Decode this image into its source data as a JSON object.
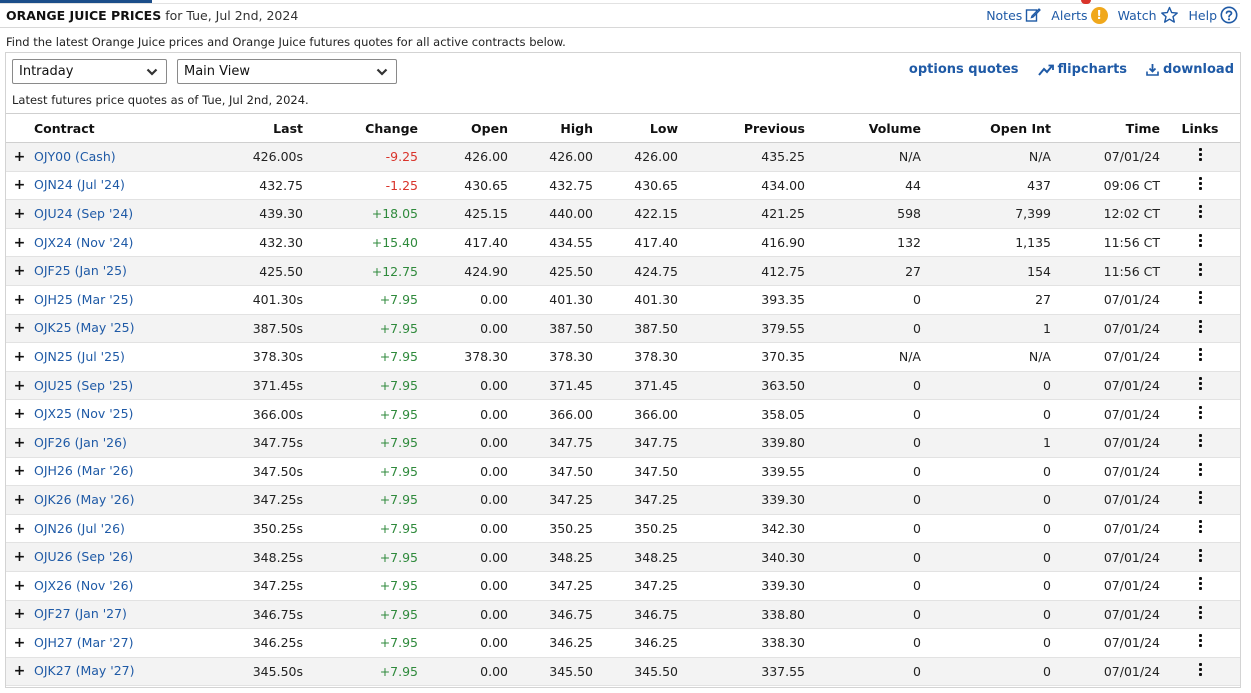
{
  "header": {
    "title": "ORANGE JUICE PRICES",
    "subtitle": "for Tue, Jul 2nd, 2024",
    "tools": {
      "notes": "Notes",
      "alerts": "Alerts",
      "alerts_badge": "!",
      "watch": "Watch",
      "help": "Help"
    }
  },
  "description": "Find the latest Orange Juice prices and Orange Juice futures quotes for all active contracts below.",
  "controls": {
    "period_select": "Intraday",
    "view_select": "Main View"
  },
  "links": {
    "options_quotes": "options quotes",
    "flipcharts": "flipcharts",
    "download": "download"
  },
  "as_of": "Latest futures price quotes as of Tue, Jul 2nd, 2024.",
  "colors": {
    "accent": "#1f5aa6",
    "negative": "#d9342b",
    "positive": "#2f8a3c",
    "alert": "#f0a81c"
  },
  "table": {
    "columns": [
      "Contract",
      "Last",
      "Change",
      "Open",
      "High",
      "Low",
      "Previous",
      "Volume",
      "Open Int",
      "Time",
      "Links"
    ],
    "rows": [
      {
        "contract": "OJY00 (Cash)",
        "last": "426.00s",
        "change": "-9.25",
        "open": "426.00",
        "high": "426.00",
        "low": "426.00",
        "previous": "435.25",
        "volume": "N/A",
        "open_int": "N/A",
        "time": "07/01/24"
      },
      {
        "contract": "OJN24 (Jul '24)",
        "last": "432.75",
        "change": "-1.25",
        "open": "430.65",
        "high": "432.75",
        "low": "430.65",
        "previous": "434.00",
        "volume": "44",
        "open_int": "437",
        "time": "09:06 CT"
      },
      {
        "contract": "OJU24 (Sep '24)",
        "last": "439.30",
        "change": "+18.05",
        "open": "425.15",
        "high": "440.00",
        "low": "422.15",
        "previous": "421.25",
        "volume": "598",
        "open_int": "7,399",
        "time": "12:02 CT"
      },
      {
        "contract": "OJX24 (Nov '24)",
        "last": "432.30",
        "change": "+15.40",
        "open": "417.40",
        "high": "434.55",
        "low": "417.40",
        "previous": "416.90",
        "volume": "132",
        "open_int": "1,135",
        "time": "11:56 CT"
      },
      {
        "contract": "OJF25 (Jan '25)",
        "last": "425.50",
        "change": "+12.75",
        "open": "424.90",
        "high": "425.50",
        "low": "424.75",
        "previous": "412.75",
        "volume": "27",
        "open_int": "154",
        "time": "11:56 CT"
      },
      {
        "contract": "OJH25 (Mar '25)",
        "last": "401.30s",
        "change": "+7.95",
        "open": "0.00",
        "high": "401.30",
        "low": "401.30",
        "previous": "393.35",
        "volume": "0",
        "open_int": "27",
        "time": "07/01/24"
      },
      {
        "contract": "OJK25 (May '25)",
        "last": "387.50s",
        "change": "+7.95",
        "open": "0.00",
        "high": "387.50",
        "low": "387.50",
        "previous": "379.55",
        "volume": "0",
        "open_int": "1",
        "time": "07/01/24"
      },
      {
        "contract": "OJN25 (Jul '25)",
        "last": "378.30s",
        "change": "+7.95",
        "open": "378.30",
        "high": "378.30",
        "low": "378.30",
        "previous": "370.35",
        "volume": "N/A",
        "open_int": "N/A",
        "time": "07/01/24"
      },
      {
        "contract": "OJU25 (Sep '25)",
        "last": "371.45s",
        "change": "+7.95",
        "open": "0.00",
        "high": "371.45",
        "low": "371.45",
        "previous": "363.50",
        "volume": "0",
        "open_int": "0",
        "time": "07/01/24"
      },
      {
        "contract": "OJX25 (Nov '25)",
        "last": "366.00s",
        "change": "+7.95",
        "open": "0.00",
        "high": "366.00",
        "low": "366.00",
        "previous": "358.05",
        "volume": "0",
        "open_int": "0",
        "time": "07/01/24"
      },
      {
        "contract": "OJF26 (Jan '26)",
        "last": "347.75s",
        "change": "+7.95",
        "open": "0.00",
        "high": "347.75",
        "low": "347.75",
        "previous": "339.80",
        "volume": "0",
        "open_int": "1",
        "time": "07/01/24"
      },
      {
        "contract": "OJH26 (Mar '26)",
        "last": "347.50s",
        "change": "+7.95",
        "open": "0.00",
        "high": "347.50",
        "low": "347.50",
        "previous": "339.55",
        "volume": "0",
        "open_int": "0",
        "time": "07/01/24"
      },
      {
        "contract": "OJK26 (May '26)",
        "last": "347.25s",
        "change": "+7.95",
        "open": "0.00",
        "high": "347.25",
        "low": "347.25",
        "previous": "339.30",
        "volume": "0",
        "open_int": "0",
        "time": "07/01/24"
      },
      {
        "contract": "OJN26 (Jul '26)",
        "last": "350.25s",
        "change": "+7.95",
        "open": "0.00",
        "high": "350.25",
        "low": "350.25",
        "previous": "342.30",
        "volume": "0",
        "open_int": "0",
        "time": "07/01/24"
      },
      {
        "contract": "OJU26 (Sep '26)",
        "last": "348.25s",
        "change": "+7.95",
        "open": "0.00",
        "high": "348.25",
        "low": "348.25",
        "previous": "340.30",
        "volume": "0",
        "open_int": "0",
        "time": "07/01/24"
      },
      {
        "contract": "OJX26 (Nov '26)",
        "last": "347.25s",
        "change": "+7.95",
        "open": "0.00",
        "high": "347.25",
        "low": "347.25",
        "previous": "339.30",
        "volume": "0",
        "open_int": "0",
        "time": "07/01/24"
      },
      {
        "contract": "OJF27 (Jan '27)",
        "last": "346.75s",
        "change": "+7.95",
        "open": "0.00",
        "high": "346.75",
        "low": "346.75",
        "previous": "338.80",
        "volume": "0",
        "open_int": "0",
        "time": "07/01/24"
      },
      {
        "contract": "OJH27 (Mar '27)",
        "last": "346.25s",
        "change": "+7.95",
        "open": "0.00",
        "high": "346.25",
        "low": "346.25",
        "previous": "338.30",
        "volume": "0",
        "open_int": "0",
        "time": "07/01/24"
      },
      {
        "contract": "OJK27 (May '27)",
        "last": "345.50s",
        "change": "+7.95",
        "open": "0.00",
        "high": "345.50",
        "low": "345.50",
        "previous": "337.55",
        "volume": "0",
        "open_int": "0",
        "time": "07/01/24"
      }
    ]
  }
}
